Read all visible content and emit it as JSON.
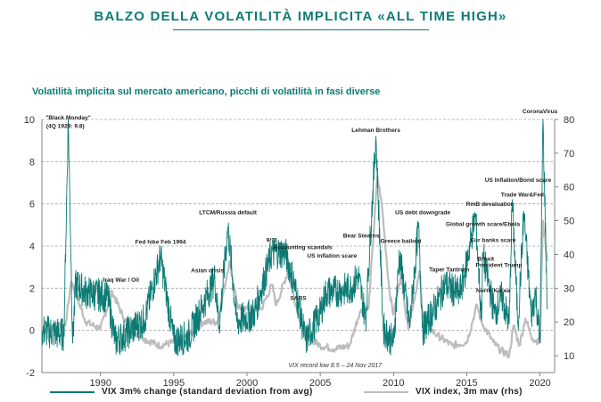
{
  "page_title": "BALZO DELLA VOLATILITÀ IMPLICITA «ALL TIME HIGH»",
  "chart_subtitle": "Volatilità implicita sul mercato americano, picchi di volatilità in fasi diverse",
  "colors": {
    "title": "#0c7b75",
    "series_change": "#0c7b75",
    "series_vix": "#bdbdbd",
    "grid": "#a6a6a6"
  },
  "chart_data": {
    "type": "line",
    "x_axis": {
      "ticks": [
        "1990",
        "1995",
        "2000",
        "2005",
        "2010",
        "2015",
        "2020"
      ],
      "range": [
        1986,
        2021
      ]
    },
    "y_left": {
      "ticks": [
        "10",
        "8",
        "6",
        "4",
        "2",
        "0",
        "-2"
      ],
      "range": [
        -2,
        10
      ]
    },
    "y_right": {
      "ticks": [
        "80",
        "70",
        "60",
        "50",
        "40",
        "30",
        "20",
        "10"
      ],
      "range": [
        5,
        80
      ]
    },
    "grid": "horizontal dashed",
    "legend": {
      "placement": "bottom"
    },
    "series": [
      {
        "name": "VIX 3m% change (standard deviation from avg)",
        "axis": "left",
        "points": [
          [
            1986,
            0
          ],
          [
            1987.5,
            -0.2
          ],
          [
            1987.8,
            10
          ],
          [
            1988.1,
            -0.6
          ],
          [
            1988.3,
            2.2
          ],
          [
            1989,
            1.8
          ],
          [
            1990.5,
            1.6
          ],
          [
            1991,
            -0.5
          ],
          [
            1991.5,
            -0.3
          ],
          [
            1993,
            0.5
          ],
          [
            1994.1,
            3.5
          ],
          [
            1995,
            -0.5
          ],
          [
            1996,
            -0.3
          ],
          [
            1997,
            1.2
          ],
          [
            1997.8,
            2.5
          ],
          [
            1998.1,
            0.2
          ],
          [
            1998.7,
            4.9
          ],
          [
            1999.3,
            0.4
          ],
          [
            2000.5,
            0.8
          ],
          [
            2001.7,
            3.7
          ],
          [
            2002.6,
            3.7
          ],
          [
            2003.2,
            2.3
          ],
          [
            2004,
            -0.5
          ],
          [
            2005,
            0.8
          ],
          [
            2005.4,
            1.8
          ],
          [
            2006.5,
            1.9
          ],
          [
            2007.1,
            2.0
          ],
          [
            2007.6,
            2.6
          ],
          [
            2008.1,
            0.5
          ],
          [
            2008.8,
            9.2
          ],
          [
            2009.3,
            0.1
          ],
          [
            2010,
            -0.6
          ],
          [
            2010.4,
            3.6
          ],
          [
            2011.1,
            0.2
          ],
          [
            2011.7,
            4.9
          ],
          [
            2012,
            0
          ],
          [
            2013,
            1.3
          ],
          [
            2013.5,
            2.2
          ],
          [
            2014.5,
            1.7
          ],
          [
            2014.8,
            2.5
          ],
          [
            2015.6,
            5.5
          ],
          [
            2016,
            0.5
          ],
          [
            2016.1,
            3.6
          ],
          [
            2016.9,
            0.8
          ],
          [
            2017.4,
            1.6
          ],
          [
            2017.9,
            0.3
          ],
          [
            2018.1,
            6.2
          ],
          [
            2018.5,
            0.3
          ],
          [
            2018.9,
            5.6
          ],
          [
            2019.4,
            0.7
          ],
          [
            2019.7,
            1.8
          ],
          [
            2020.0,
            -0.6
          ],
          [
            2020.2,
            10
          ],
          [
            2020.5,
            1.0
          ]
        ]
      },
      {
        "name": "VIX index, 3m mav (rhs)",
        "axis": "right",
        "points": [
          [
            1986,
            18
          ],
          [
            1987.6,
            19
          ],
          [
            1988,
            32
          ],
          [
            1988.5,
            26
          ],
          [
            1989,
            20
          ],
          [
            1990,
            18
          ],
          [
            1990.8,
            29
          ],
          [
            1991.5,
            22
          ],
          [
            1992,
            18
          ],
          [
            1993,
            15
          ],
          [
            1994,
            13
          ],
          [
            1995,
            14
          ],
          [
            1996,
            16
          ],
          [
            1997,
            20
          ],
          [
            1998,
            20
          ],
          [
            1998.8,
            38
          ],
          [
            1999.4,
            24
          ],
          [
            2000,
            24
          ],
          [
            2001,
            24
          ],
          [
            2001.7,
            31
          ],
          [
            2002,
            25
          ],
          [
            2002.8,
            35
          ],
          [
            2003.4,
            24
          ],
          [
            2004,
            16
          ],
          [
            2005,
            13
          ],
          [
            2006,
            12
          ],
          [
            2007,
            13
          ],
          [
            2007.7,
            23
          ],
          [
            2008.3,
            24
          ],
          [
            2008.9,
            63
          ],
          [
            2009.2,
            55
          ],
          [
            2009.7,
            30
          ],
          [
            2010,
            22
          ],
          [
            2010.5,
            34
          ],
          [
            2011,
            18
          ],
          [
            2011.8,
            35
          ],
          [
            2012,
            20
          ],
          [
            2013,
            16
          ],
          [
            2014,
            13
          ],
          [
            2015,
            14
          ],
          [
            2015.7,
            25
          ],
          [
            2016,
            20
          ],
          [
            2016.8,
            14
          ],
          [
            2017.2,
            12
          ],
          [
            2017.9,
            10
          ],
          [
            2018.2,
            19
          ],
          [
            2018.6,
            13
          ],
          [
            2019,
            21
          ],
          [
            2019.5,
            15
          ],
          [
            2020.0,
            14
          ],
          [
            2020.2,
            50
          ],
          [
            2020.5,
            38
          ]
        ]
      }
    ],
    "annotations": [
      {
        "text": "\"Black Monday\"",
        "x": 1987.8,
        "y": 10
      },
      {
        "text": "(4Q 1929: 9.8)",
        "x": 1987.6,
        "y": 9.6
      },
      {
        "text": "Iraq War / Oil",
        "x": 1991.4,
        "y": 2.3
      },
      {
        "text": "Fed hike Feb 1994",
        "x": 1994.1,
        "y": 4.1
      },
      {
        "text": "Asian crisis",
        "x": 1997.3,
        "y": 2.75
      },
      {
        "text": "LTCM/Russia default",
        "x": 1998.7,
        "y": 5.5
      },
      {
        "text": "9/11",
        "x": 2001.7,
        "y": 4.2
      },
      {
        "text": "Accounting scandals",
        "x": 2003.8,
        "y": 3.85
      },
      {
        "text": "US inflation scare",
        "x": 2005.8,
        "y": 3.45
      },
      {
        "text": "SARS",
        "x": 2003.5,
        "y": 1.45
      },
      {
        "text": "Bear Stearns",
        "x": 2007.8,
        "y": 4.4
      },
      {
        "text": "Lehman Brothers",
        "x": 2008.8,
        "y": 9.4
      },
      {
        "text": "Greece bailout",
        "x": 2010.5,
        "y": 4.15
      },
      {
        "text": "US debt downgrade",
        "x": 2012.0,
        "y": 5.5
      },
      {
        "text": "Taper Tantrum",
        "x": 2013.8,
        "y": 2.8
      },
      {
        "text": "Global growth scare/Ebola",
        "x": 2016.1,
        "y": 4.95
      },
      {
        "text": "RmB devaluation",
        "x": 2016.6,
        "y": 5.9
      },
      {
        "text": "US Inflation/Bond scare",
        "x": 2018.5,
        "y": 7.05
      },
      {
        "text": "Trade War&Fed",
        "x": 2018.8,
        "y": 6.35
      },
      {
        "text": "Eur banks scare",
        "x": 2016.8,
        "y": 4.2
      },
      {
        "text": "Brexit",
        "x": 2016.3,
        "y": 3.3
      },
      {
        "text": "President Trump",
        "x": 2017.2,
        "y": 3.0
      },
      {
        "text": "North Korea",
        "x": 2016.8,
        "y": 1.8
      },
      {
        "text": "CoronaVirus",
        "x": 2020.0,
        "y": 10.3
      }
    ],
    "note": "VIX record low 8.5 – 24 Nov 2017"
  }
}
